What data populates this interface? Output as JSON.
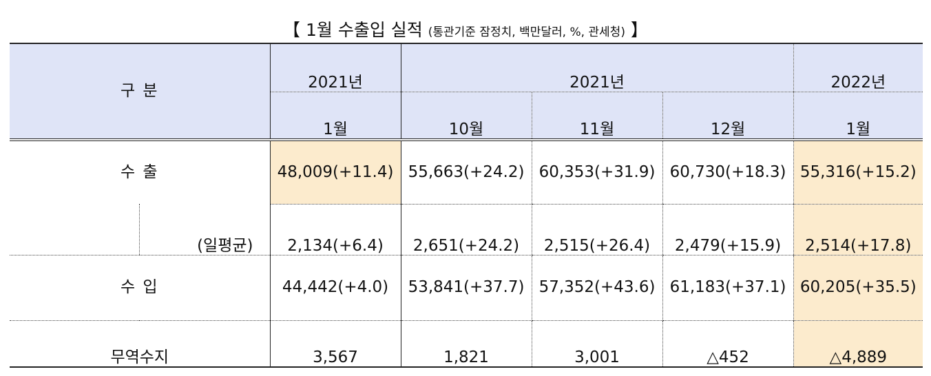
{
  "caption": {
    "main": "【 1월 수출입 실적",
    "sub": "(통관기준 잠정치, 백만달러, %, 관세청)",
    "end": "】"
  },
  "header": {
    "category": "구 분",
    "year_left": "2021년",
    "year_mid": "2021년",
    "year_right": "2022년",
    "months": [
      "1월",
      "10월",
      "11월",
      "12월",
      "1월"
    ]
  },
  "rows": [
    {
      "label": "수 출",
      "values": [
        "48,009(+11.4)",
        "55,663(+24.2)",
        "60,353(+31.9)",
        "60,730(+18.3)",
        "55,316(+15.2)"
      ]
    },
    {
      "label": "(일평균)",
      "values": [
        "2,134(+6.4)",
        "2,651(+24.2)",
        "2,515(+26.4)",
        "2,479(+15.9)",
        "2,514(+17.8)"
      ]
    },
    {
      "label": "수 입",
      "values": [
        "44,442(+4.0)",
        "53,841(+37.7)",
        "57,352(+43.6)",
        "61,183(+37.1)",
        "60,205(+35.5)"
      ]
    },
    {
      "label": "무역수지",
      "values": [
        "3,567",
        "1,821",
        "3,001",
        "△452",
        "△4,889"
      ]
    }
  ],
  "colors": {
    "header_bg": "#dfe4f7",
    "highlight_bg": "#fcebcd"
  }
}
